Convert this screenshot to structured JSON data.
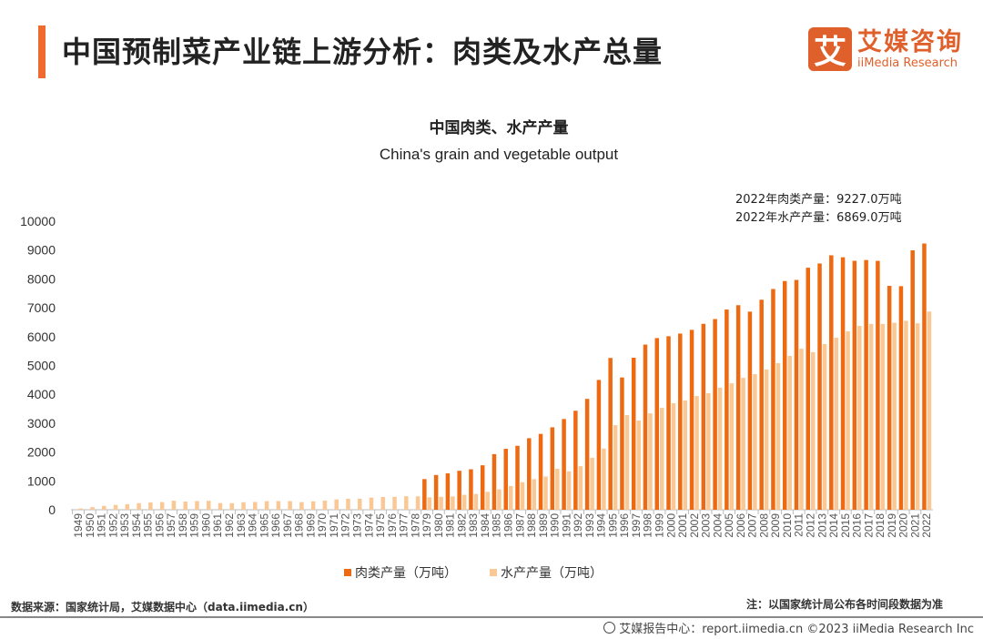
{
  "header": {
    "title": "中国预制菜产业链上游分析：肉类及水产总量"
  },
  "logo": {
    "mark": "艾",
    "cn": "艾媒咨询",
    "en": "iiMedia Research"
  },
  "annotations": [
    "2022年肉类产量：9227.0万吨",
    "2022年水产产量：6869.0万吨"
  ],
  "colors": {
    "meat": "#ee6a12",
    "aquatic": "#f9c894",
    "accent": "#ee6a2e"
  },
  "chart_data": {
    "type": "bar",
    "title": "中国肉类、水产产量",
    "subtitle": "China's grain and vegetable output",
    "ylim": [
      0,
      10000
    ],
    "yticks": [
      0,
      1000,
      2000,
      3000,
      4000,
      5000,
      6000,
      7000,
      8000,
      9000,
      10000
    ],
    "grid": false,
    "legend": "bottom",
    "categories": [
      "1949",
      "1950",
      "1951",
      "1952",
      "1953",
      "1954",
      "1955",
      "1956",
      "1957",
      "1958",
      "1959",
      "1960",
      "1961",
      "1962",
      "1963",
      "1964",
      "1965",
      "1966",
      "1967",
      "1968",
      "1969",
      "1970",
      "1971",
      "1972",
      "1973",
      "1974",
      "1975",
      "1976",
      "1977",
      "1978",
      "1979",
      "1980",
      "1981",
      "1982",
      "1983",
      "1984",
      "1985",
      "1986",
      "1987",
      "1988",
      "1989",
      "1990",
      "1991",
      "1992",
      "1993",
      "1994",
      "1995",
      "1996",
      "1997",
      "1998",
      "1999",
      "2000",
      "2001",
      "2002",
      "2003",
      "2004",
      "2005",
      "2006",
      "2007",
      "2008",
      "2009",
      "2010",
      "2011",
      "2012",
      "2013",
      "2014",
      "2015",
      "2016",
      "2017",
      "2018",
      "2019",
      "2020",
      "2021",
      "2022"
    ],
    "series": [
      {
        "name": "肉类产量（万吨）",
        "values": [
          null,
          null,
          null,
          null,
          null,
          null,
          null,
          null,
          null,
          null,
          null,
          null,
          null,
          null,
          null,
          null,
          null,
          null,
          null,
          null,
          null,
          null,
          null,
          null,
          null,
          null,
          null,
          null,
          null,
          null,
          1062,
          1205,
          1261,
          1351,
          1402,
          1541,
          1927,
          2112,
          2216,
          2479,
          2629,
          2857,
          3144,
          3431,
          3842,
          4499,
          5260,
          4584,
          5269,
          5724,
          5949,
          6014,
          6106,
          6234,
          6443,
          6609,
          6939,
          7089,
          6866,
          7279,
          7650,
          7926,
          7965,
          8387,
          8535,
          8818,
          8750,
          8628,
          8654,
          8625,
          7759,
          7748,
          8990,
          9227
        ]
      },
      {
        "name": "水产产量（万吨）",
        "values": [
          45,
          91,
          133,
          167,
          190,
          229,
          252,
          265,
          312,
          281,
          302,
          310,
          231,
          228,
          259,
          270,
          298,
          302,
          300,
          264,
          293,
          318,
          358,
          381,
          384,
          420,
          441,
          448,
          470,
          466,
          431,
          450,
          461,
          516,
          546,
          619,
          705,
          824,
          955,
          1061,
          1152,
          1420,
          1330,
          1510,
          1800,
          2120,
          2930,
          3280,
          3090,
          3340,
          3530,
          3690,
          3790,
          3940,
          4040,
          4230,
          4380,
          4570,
          4700,
          4860,
          5080,
          5330,
          5580,
          5460,
          5740,
          5960,
          6180,
          6370,
          6440,
          6440,
          6480,
          6550,
          6460,
          6869
        ]
      }
    ]
  },
  "footer": {
    "source": "数据来源：国家统计局，艾媒数据中心（data.iimedia.cn）",
    "note": "注：以国家统计局公布各时间段数据为准",
    "credit": "艾媒报告中心：report.iimedia.cn  ©2023  iiMedia Research  Inc"
  }
}
